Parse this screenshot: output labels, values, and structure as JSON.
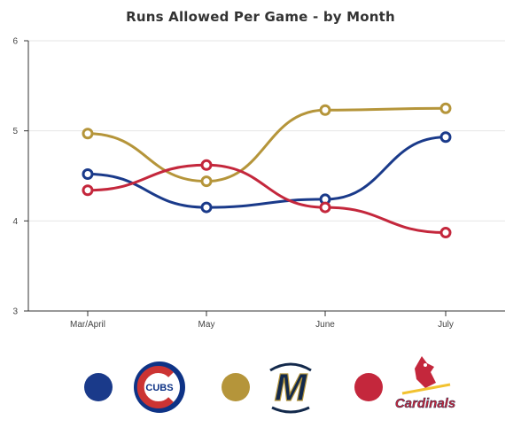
{
  "chart_data": {
    "type": "line",
    "title": "Runs Allowed Per Game - by Month",
    "xlabel": "",
    "ylabel": "",
    "categories": [
      "Mar/April",
      "May",
      "June",
      "July"
    ],
    "ylim": [
      3,
      6
    ],
    "yticks": [
      "3",
      "4",
      "5",
      "6"
    ],
    "grid": true,
    "legend_position": "bottom",
    "series": [
      {
        "key": "cubs",
        "color": "#1a3a8a",
        "values": [
          4.52,
          4.15,
          4.24,
          4.93
        ]
      },
      {
        "key": "brewers",
        "color": "#b5953a",
        "values": [
          4.97,
          4.44,
          5.23,
          5.25
        ]
      },
      {
        "key": "cardinals",
        "color": "#c4273c",
        "values": [
          4.34,
          4.62,
          4.15,
          3.87
        ]
      }
    ]
  },
  "legend": {
    "items": [
      {
        "color": "#1a3a8a",
        "logo_icon": "cubs-logo-icon",
        "logo_text": "CUBS"
      },
      {
        "color": "#b5953a",
        "logo_icon": "brewers-logo-icon",
        "logo_text": "M"
      },
      {
        "color": "#c4273c",
        "logo_icon": "cardinals-logo-icon",
        "logo_text": "Cardinals"
      }
    ]
  }
}
